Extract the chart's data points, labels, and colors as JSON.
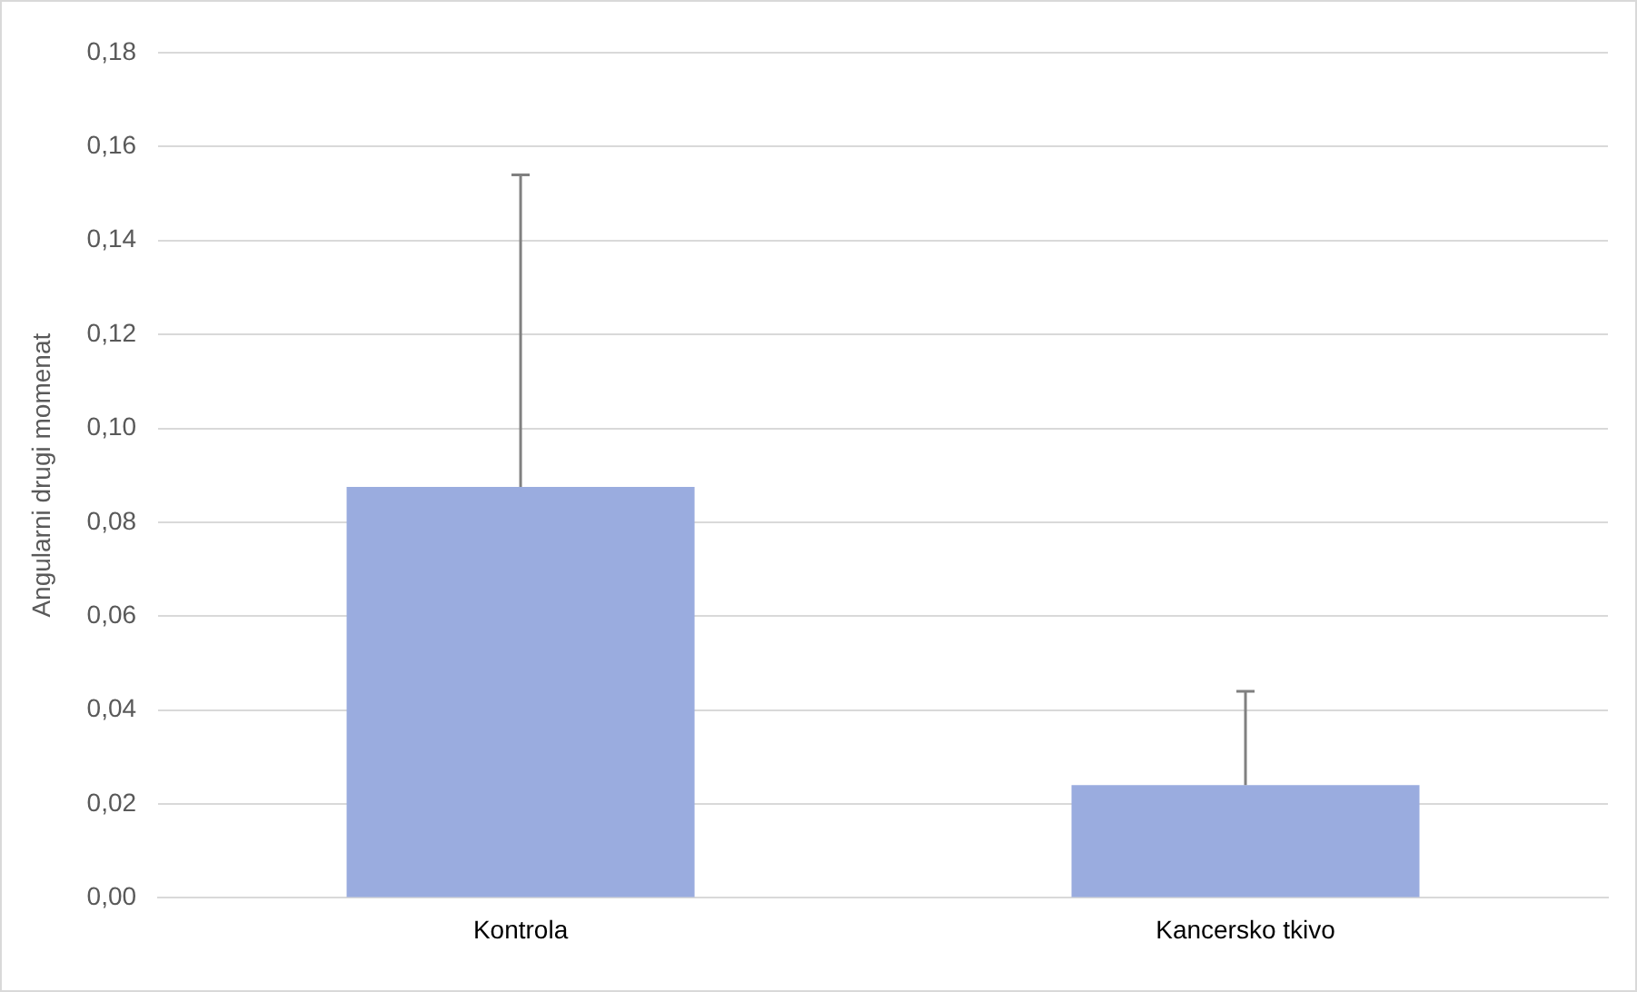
{
  "chart_data": {
    "type": "bar",
    "ylabel": "Angularni drugi momenat",
    "categories": [
      "Kontrola",
      "Kancersko tkivo"
    ],
    "values": [
      0.0875,
      0.024
    ],
    "errors": [
      [
        0.0875,
        0.154
      ],
      [
        0.024,
        0.044
      ]
    ],
    "color": "#9aacdf",
    "ylim": [
      0,
      0.18
    ],
    "yticks": [
      {
        "value": 0,
        "label": "0,00"
      },
      {
        "value": 0.02,
        "label": "0,02"
      },
      {
        "value": 0.04,
        "label": "0,04"
      },
      {
        "value": 0.06,
        "label": "0,06"
      },
      {
        "value": 0.08,
        "label": "0,08"
      },
      {
        "value": 0.1,
        "label": "0,10"
      },
      {
        "value": 0.12,
        "label": "0,12"
      },
      {
        "value": 0.14,
        "label": "0,14"
      },
      {
        "value": 0.16,
        "label": "0,16"
      },
      {
        "value": 0.18,
        "label": "0,18"
      }
    ],
    "grid": "y",
    "legend": false
  }
}
